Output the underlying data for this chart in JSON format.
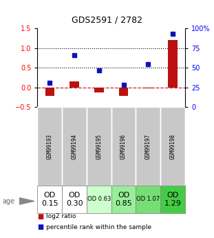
{
  "title": "GDS2591 / 2782",
  "samples": [
    "GSM99193",
    "GSM99194",
    "GSM99195",
    "GSM99196",
    "GSM99197",
    "GSM99198"
  ],
  "log2_ratio": [
    -0.22,
    0.15,
    -0.12,
    -0.22,
    -0.02,
    1.2
  ],
  "percentile_rank": [
    0.12,
    0.83,
    0.44,
    0.07,
    0.59,
    1.36
  ],
  "left_ylim": [
    -0.5,
    1.5
  ],
  "right_ylim": [
    0,
    100
  ],
  "left_yticks": [
    -0.5,
    0,
    0.5,
    1.0,
    1.5
  ],
  "right_yticks": [
    0,
    25,
    50,
    75,
    100
  ],
  "bar_color": "#bb1111",
  "dot_color": "#1111bb",
  "dotted_lines": [
    0.5,
    1.0
  ],
  "zero_line_color": "#cc2222",
  "age_labels": [
    "OD\n0.15",
    "OD\n0.30",
    "OD 0.63",
    "OD\n0.85",
    "OD 1.07",
    "OD\n1.29"
  ],
  "age_fontsize": [
    8,
    8,
    6,
    8,
    6,
    8
  ],
  "age_bg_colors": [
    "#ffffff",
    "#ffffff",
    "#ccffcc",
    "#99ee99",
    "#77dd77",
    "#44cc44"
  ],
  "cell_bg_color": "#c8c8c8",
  "legend_log2": "log2 ratio",
  "legend_pct": "percentile rank within the sample"
}
